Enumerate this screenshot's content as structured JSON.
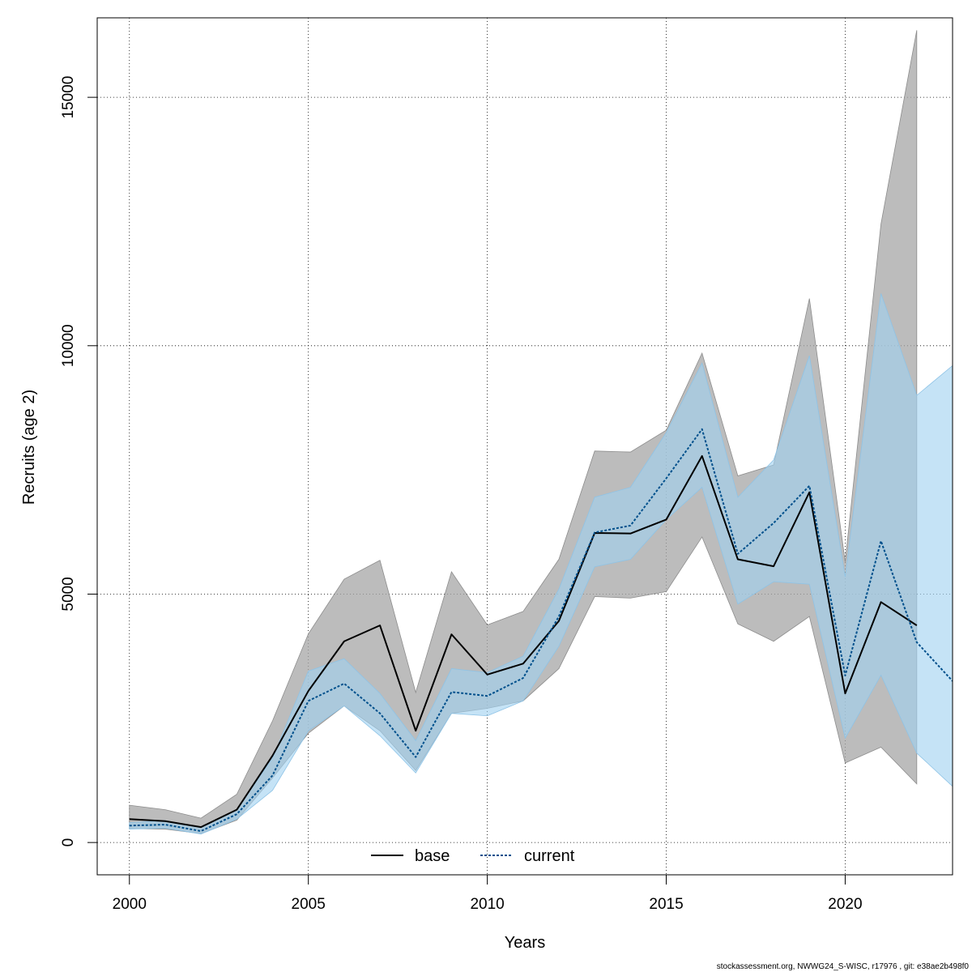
{
  "chart_data": {
    "type": "line",
    "title": "",
    "xlabel": "Years",
    "ylabel": "Recruits (age 2)",
    "xlim": [
      1999.1,
      2023
    ],
    "ylim": [
      -650,
      16600
    ],
    "x_ticks": [
      2000,
      2005,
      2010,
      2015,
      2020
    ],
    "y_ticks": [
      0,
      5000,
      10000,
      15000
    ],
    "grid": true,
    "legend_position": "bottom-center",
    "series": [
      {
        "name": "base",
        "color": "#000000",
        "line_style": "solid",
        "band_color": "#a6a6a6",
        "x": [
          2000,
          2001,
          2002,
          2003,
          2004,
          2005,
          2006,
          2007,
          2008,
          2009,
          2010,
          2011,
          2012,
          2013,
          2014,
          2015,
          2016,
          2017,
          2018,
          2019,
          2020,
          2021,
          2022
        ],
        "values": [
          470,
          430,
          310,
          660,
          1750,
          3050,
          4050,
          4370,
          2250,
          4190,
          3380,
          3600,
          4460,
          6230,
          6220,
          6500,
          7780,
          5700,
          5560,
          7050,
          3000,
          4840,
          4370
        ],
        "lower": [
          280,
          270,
          180,
          450,
          1300,
          2200,
          2750,
          2250,
          1450,
          2600,
          2700,
          2850,
          3500,
          4950,
          4920,
          5050,
          6150,
          4400,
          4050,
          4550,
          1600,
          1920,
          1180
        ],
        "upper": [
          750,
          660,
          490,
          970,
          2450,
          4200,
          5300,
          5680,
          3020,
          5450,
          4380,
          4650,
          5700,
          7880,
          7860,
          8300,
          9850,
          7380,
          7600,
          10950,
          5650,
          12450,
          16350
        ]
      },
      {
        "name": "current",
        "color": "#00508c",
        "line_style": "dotted",
        "band_color": "#a2d2f0",
        "x": [
          2000,
          2001,
          2002,
          2003,
          2004,
          2005,
          2006,
          2007,
          2008,
          2009,
          2010,
          2011,
          2012,
          2013,
          2014,
          2015,
          2016,
          2017,
          2018,
          2019,
          2020,
          2021,
          2022,
          2023
        ],
        "values": [
          340,
          360,
          230,
          570,
          1350,
          2850,
          3200,
          2600,
          1720,
          3030,
          2950,
          3310,
          4550,
          6240,
          6380,
          7330,
          8320,
          5810,
          6430,
          7180,
          3360,
          6070,
          4030,
          3250
        ],
        "lower": [
          270,
          290,
          170,
          470,
          1050,
          2250,
          2750,
          2150,
          1400,
          2600,
          2550,
          2850,
          3950,
          5550,
          5700,
          6500,
          7150,
          4800,
          5250,
          5200,
          2100,
          3370,
          1800,
          1130
        ],
        "upper": [
          400,
          440,
          300,
          660,
          1700,
          3450,
          3700,
          3000,
          2050,
          3500,
          3420,
          3750,
          5100,
          6950,
          7150,
          8250,
          9650,
          6950,
          7700,
          9800,
          5350,
          11050,
          9000,
          9600
        ]
      }
    ]
  },
  "footer_text": "stockassessment.org, NWWG24_S-WISC, r17976 , git: e38ae2b498f0"
}
